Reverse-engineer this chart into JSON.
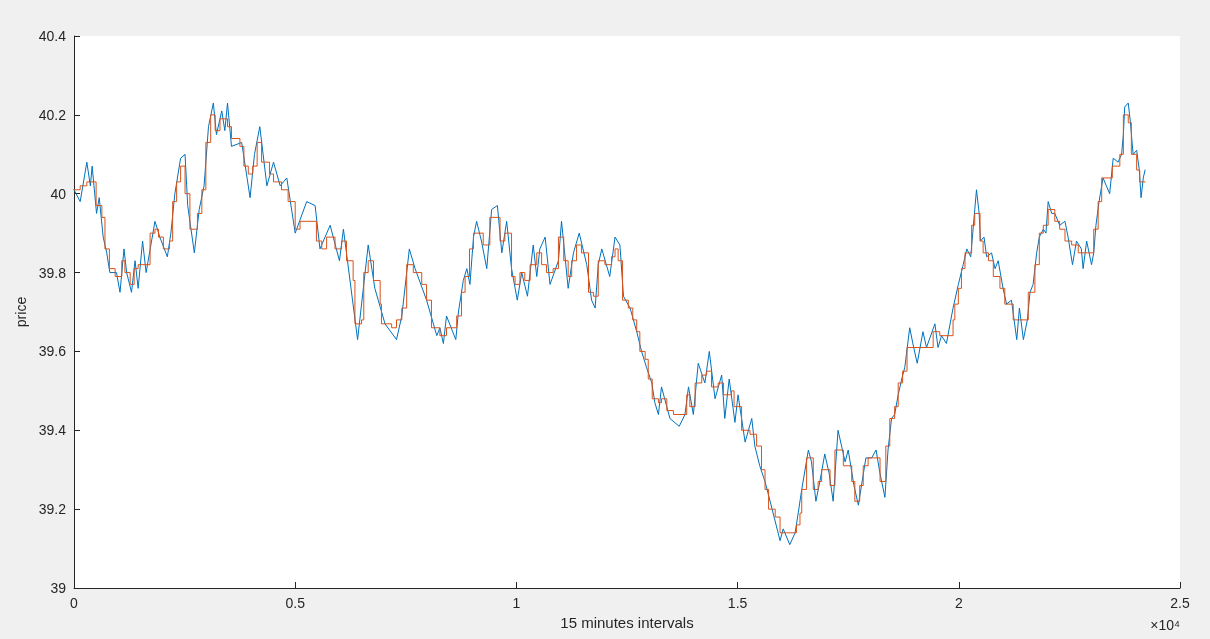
{
  "chart_data": {
    "type": "line",
    "xlabel": "15 minutes intervals",
    "ylabel": "price",
    "xlim": [
      0,
      2.5
    ],
    "xticks": [
      0,
      0.5,
      1,
      1.5,
      2,
      2.5
    ],
    "ylim": [
      39,
      40.4
    ],
    "yticks": [
      39,
      39.2,
      39.4,
      39.6,
      39.8,
      40,
      40.2,
      40.4
    ],
    "annotations": [
      "×10⁴"
    ],
    "series": [
      {
        "color": "#0072bd",
        "x": [
          0,
          0.014,
          0.029,
          0.037,
          0.041,
          0.051,
          0.057,
          0.066,
          0.074,
          0.081,
          0.096,
          0.104,
          0.113,
          0.119,
          0.13,
          0.138,
          0.145,
          0.155,
          0.163,
          0.183,
          0.194,
          0.211,
          0.219,
          0.228,
          0.241,
          0.251,
          0.257,
          0.272,
          0.283,
          0.294,
          0.304,
          0.315,
          0.322,
          0.334,
          0.341,
          0.347,
          0.356,
          0.379,
          0.398,
          0.408,
          0.42,
          0.436,
          0.451,
          0.466,
          0.481,
          0.5,
          0.526,
          0.545,
          0.556,
          0.579,
          0.6,
          0.609,
          0.641,
          0.665,
          0.68,
          0.703,
          0.729,
          0.741,
          0.758,
          0.771,
          0.797,
          0.82,
          0.827,
          0.835,
          0.842,
          0.863,
          0.869,
          0.88,
          0.888,
          0.895,
          0.903,
          0.91,
          0.921,
          0.933,
          0.944,
          0.957,
          0.967,
          0.978,
          0.989,
          1.002,
          1.012,
          1.025,
          1.038,
          1.046,
          1.053,
          1.065,
          1.076,
          1.095,
          1.102,
          1.117,
          1.129,
          1.142,
          1.159,
          1.17,
          1.178,
          1.185,
          1.193,
          1.211,
          1.223,
          1.234,
          1.242,
          1.257,
          1.272,
          1.283,
          1.294,
          1.306,
          1.313,
          1.321,
          1.328,
          1.347,
          1.368,
          1.381,
          1.389,
          1.4,
          1.411,
          1.426,
          1.436,
          1.449,
          1.464,
          1.471,
          1.481,
          1.494,
          1.501,
          1.517,
          1.532,
          1.539,
          1.55,
          1.562,
          1.578,
          1.596,
          1.603,
          1.618,
          1.63,
          1.637,
          1.645,
          1.66,
          1.667,
          1.677,
          1.686,
          1.697,
          1.707,
          1.716,
          1.727,
          1.735,
          1.743,
          1.75,
          1.763,
          1.773,
          1.78,
          1.79,
          1.803,
          1.813,
          1.822,
          1.833,
          1.84,
          1.848,
          1.855,
          1.863,
          1.871,
          1.878,
          1.889,
          1.898,
          1.906,
          1.919,
          1.927,
          1.946,
          1.953,
          1.961,
          1.972,
          1.987,
          1.999,
          2.01,
          2.018,
          2.027,
          2.033,
          2.04,
          2.046,
          2.049,
          2.057,
          2.063,
          2.074,
          2.082,
          2.089,
          2.1,
          2.108,
          2.119,
          2.131,
          2.137,
          2.146,
          2.155,
          2.161,
          2.168,
          2.176,
          2.182,
          2.191,
          2.197,
          2.202,
          2.21,
          2.217,
          2.228,
          2.24,
          2.247,
          2.257,
          2.266,
          2.277,
          2.281,
          2.289,
          2.3,
          2.305,
          2.31,
          2.317,
          2.326,
          2.341,
          2.349,
          2.36,
          2.368,
          2.372,
          2.375,
          2.383,
          2.388,
          2.394,
          2.402,
          2.408,
          2.412,
          2.417,
          2.421
        ],
        "values": [
          40.01,
          39.98,
          40.08,
          40.02,
          40.07,
          39.95,
          39.99,
          39.89,
          39.85,
          39.8,
          39.8,
          39.75,
          39.86,
          39.8,
          39.75,
          39.83,
          39.76,
          39.88,
          39.8,
          39.93,
          39.89,
          39.84,
          39.9,
          40.0,
          40.09,
          40.1,
          39.97,
          39.85,
          39.96,
          40.02,
          40.17,
          40.23,
          40.15,
          40.21,
          40.16,
          40.23,
          40.12,
          40.13,
          39.99,
          40.1,
          40.17,
          40.02,
          40.08,
          40.02,
          40.04,
          39.9,
          39.98,
          39.97,
          39.86,
          39.92,
          39.83,
          39.91,
          39.63,
          39.87,
          39.76,
          39.67,
          39.63,
          39.69,
          39.86,
          39.81,
          39.73,
          39.64,
          39.66,
          39.62,
          39.69,
          39.63,
          39.7,
          39.78,
          39.81,
          39.77,
          39.89,
          39.93,
          39.88,
          39.81,
          39.96,
          39.97,
          39.85,
          39.93,
          39.81,
          39.73,
          39.8,
          39.74,
          39.87,
          39.79,
          39.86,
          39.89,
          39.77,
          39.83,
          39.93,
          39.76,
          39.85,
          39.9,
          39.82,
          39.73,
          39.71,
          39.82,
          39.86,
          39.79,
          39.89,
          39.87,
          39.74,
          39.71,
          39.65,
          39.6,
          39.56,
          39.52,
          39.47,
          39.44,
          39.51,
          39.43,
          39.41,
          39.44,
          39.51,
          39.44,
          39.57,
          39.52,
          39.6,
          39.48,
          39.54,
          39.43,
          39.53,
          39.42,
          39.49,
          39.37,
          39.43,
          39.36,
          39.31,
          39.27,
          39.2,
          39.12,
          39.15,
          39.11,
          39.14,
          39.19,
          39.25,
          39.35,
          39.32,
          39.22,
          39.27,
          39.34,
          39.29,
          39.22,
          39.4,
          39.36,
          39.32,
          39.35,
          39.26,
          39.21,
          39.26,
          39.33,
          39.33,
          39.35,
          39.29,
          39.23,
          39.35,
          39.43,
          39.44,
          39.49,
          39.53,
          39.56,
          39.66,
          39.61,
          39.57,
          39.65,
          39.61,
          39.67,
          39.61,
          39.64,
          39.62,
          39.71,
          39.77,
          39.82,
          39.86,
          39.84,
          39.92,
          40.01,
          39.95,
          39.88,
          39.89,
          39.84,
          39.85,
          39.81,
          39.83,
          39.76,
          39.72,
          39.73,
          39.63,
          39.71,
          39.63,
          39.68,
          39.75,
          39.77,
          39.85,
          39.89,
          39.91,
          39.9,
          39.98,
          39.95,
          39.95,
          39.92,
          39.93,
          39.89,
          39.82,
          39.88,
          39.86,
          39.81,
          39.88,
          39.82,
          39.85,
          39.92,
          39.98,
          40.04,
          40.0,
          40.09,
          40.08,
          40.1,
          40.15,
          40.22,
          40.23,
          40.18,
          40.1,
          40.11,
          40.06,
          39.99,
          40.04,
          40.06
        ]
      },
      {
        "type": "step",
        "color": "#d95319",
        "x": [
          0,
          0.014,
          0.029,
          0.05,
          0.063,
          0.07,
          0.08,
          0.093,
          0.108,
          0.115,
          0.127,
          0.136,
          0.145,
          0.172,
          0.183,
          0.191,
          0.202,
          0.216,
          0.223,
          0.232,
          0.241,
          0.251,
          0.262,
          0.279,
          0.289,
          0.298,
          0.309,
          0.319,
          0.33,
          0.347,
          0.356,
          0.375,
          0.384,
          0.394,
          0.404,
          0.414,
          0.424,
          0.442,
          0.451,
          0.469,
          0.484,
          0.5,
          0.511,
          0.548,
          0.56,
          0.571,
          0.59,
          0.605,
          0.616,
          0.631,
          0.635,
          0.65,
          0.655,
          0.665,
          0.677,
          0.692,
          0.695,
          0.718,
          0.729,
          0.741,
          0.752,
          0.767,
          0.786,
          0.797,
          0.808,
          0.827,
          0.842,
          0.865,
          0.876,
          0.884,
          0.894,
          0.903,
          0.925,
          0.94,
          0.963,
          0.974,
          0.989,
          0.997,
          1.008,
          1.019,
          1.031,
          1.046,
          1.057,
          1.068,
          1.083,
          1.095,
          1.107,
          1.117,
          1.125,
          1.136,
          1.147,
          1.163,
          1.174,
          1.185,
          1.2,
          1.215,
          1.223,
          1.23,
          1.24,
          1.253,
          1.263,
          1.272,
          1.279,
          1.291,
          1.298,
          1.307,
          1.321,
          1.328,
          1.34,
          1.355,
          1.385,
          1.392,
          1.404,
          1.419,
          1.43,
          1.441,
          1.456,
          1.468,
          1.486,
          1.492,
          1.509,
          1.528,
          1.543,
          1.554,
          1.562,
          1.57,
          1.585,
          1.596,
          1.611,
          1.633,
          1.641,
          1.645,
          1.656,
          1.671,
          1.682,
          1.69,
          1.709,
          1.72,
          1.739,
          1.758,
          1.765,
          1.776,
          1.784,
          1.795,
          1.822,
          1.835,
          1.844,
          1.855,
          1.863,
          1.873,
          1.883,
          1.942,
          1.957,
          1.987,
          1.991,
          1.999,
          2.006,
          2.014,
          2.029,
          2.036,
          2.048,
          2.055,
          2.067,
          2.078,
          2.093,
          2.104,
          2.123,
          2.157,
          2.172,
          2.182,
          2.191,
          2.202,
          2.217,
          2.228,
          2.24,
          2.255,
          2.27,
          2.305,
          2.315,
          2.323,
          2.347,
          2.364,
          2.372,
          2.383,
          2.39,
          2.402,
          2.409,
          2.421
        ],
        "values": [
          40.01,
          40.02,
          40.03,
          39.97,
          39.94,
          39.86,
          39.81,
          39.79,
          39.83,
          39.8,
          39.77,
          39.81,
          39.82,
          39.9,
          39.91,
          39.89,
          39.86,
          39.88,
          39.98,
          40.03,
          40.07,
          40.0,
          39.91,
          39.95,
          40.01,
          40.13,
          40.2,
          40.16,
          40.19,
          40.17,
          40.14,
          40.12,
          40.07,
          40.05,
          40.07,
          40.13,
          40.08,
          40.05,
          40.03,
          40.01,
          39.98,
          39.91,
          39.93,
          39.88,
          39.86,
          39.89,
          39.86,
          39.88,
          39.83,
          39.78,
          39.67,
          39.68,
          39.8,
          39.83,
          39.78,
          39.72,
          39.67,
          39.66,
          39.68,
          39.71,
          39.82,
          39.8,
          39.77,
          39.73,
          39.66,
          39.64,
          39.66,
          39.69,
          39.75,
          39.79,
          39.86,
          39.9,
          39.87,
          39.94,
          39.88,
          39.9,
          39.79,
          39.77,
          39.8,
          39.78,
          39.82,
          39.85,
          39.82,
          39.8,
          39.81,
          39.89,
          39.83,
          39.79,
          39.83,
          39.87,
          39.85,
          39.75,
          39.74,
          39.83,
          39.82,
          39.84,
          39.86,
          39.83,
          39.73,
          39.71,
          39.68,
          39.65,
          39.6,
          39.58,
          39.53,
          39.48,
          39.47,
          39.48,
          39.45,
          39.44,
          39.49,
          39.46,
          39.52,
          39.54,
          39.55,
          39.51,
          39.52,
          39.49,
          39.5,
          39.46,
          39.4,
          39.39,
          39.36,
          39.3,
          39.25,
          39.2,
          39.18,
          39.14,
          39.14,
          39.16,
          39.19,
          39.25,
          39.33,
          39.25,
          39.27,
          39.3,
          39.26,
          39.35,
          39.31,
          39.27,
          39.22,
          39.26,
          39.31,
          39.33,
          39.27,
          39.36,
          39.43,
          39.46,
          39.52,
          39.55,
          39.61,
          39.65,
          39.64,
          39.68,
          39.72,
          39.76,
          39.81,
          39.85,
          39.92,
          39.95,
          39.88,
          39.85,
          39.83,
          39.79,
          39.76,
          39.72,
          39.68,
          39.75,
          39.82,
          39.9,
          39.92,
          39.96,
          39.93,
          39.91,
          39.88,
          39.87,
          39.85,
          39.91,
          39.98,
          40.04,
          40.07,
          40.1,
          40.2,
          40.18,
          40.1,
          40.06,
          40.03,
          40.03
        ]
      }
    ]
  }
}
